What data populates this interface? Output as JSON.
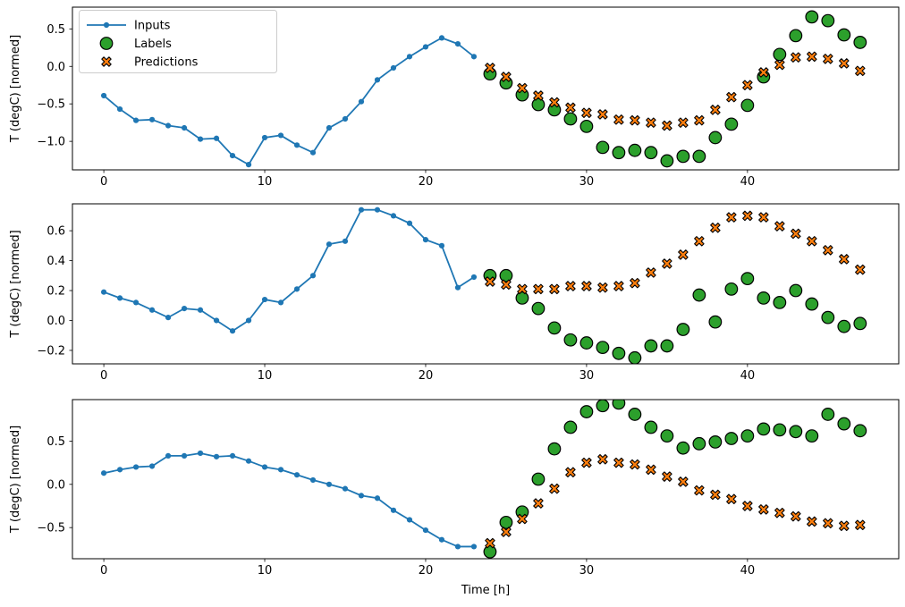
{
  "figure": {
    "x_label": "Time [h]",
    "y_label": "T (degC) [normed]",
    "colors": {
      "inputs": "#1f77b4",
      "labels": "#2ca02c",
      "predictions": "#ff7f0e",
      "marker_edge": "#000000",
      "axis": "#000000",
      "legend_border": "#cccccc",
      "background": "#ffffff"
    },
    "legend": {
      "position": "upper left",
      "items": [
        {
          "label": "Inputs",
          "marker": "line-dot",
          "series": "inputs"
        },
        {
          "label": "Labels",
          "marker": "circle",
          "series": "labels"
        },
        {
          "label": "Predictions",
          "marker": "X",
          "series": "predictions"
        }
      ]
    }
  },
  "chart_data": [
    {
      "type": "line",
      "panel": 1,
      "title": "",
      "xlabel": "",
      "ylabel": "T (degC) [normed]",
      "xlim": [
        -1.95,
        49.4
      ],
      "ylim": [
        -1.38,
        0.79
      ],
      "x_ticks": [
        0,
        10,
        20,
        30,
        40
      ],
      "y_ticks": [
        0.5,
        0.0,
        -0.5,
        -1.0
      ],
      "grid": false,
      "series": [
        {
          "name": "Inputs",
          "type": "line",
          "marker": "dot",
          "x": [
            0,
            1,
            2,
            3,
            4,
            5,
            6,
            7,
            8,
            9,
            10,
            11,
            12,
            13,
            14,
            15,
            16,
            17,
            18,
            19,
            20,
            21,
            22,
            23
          ],
          "y": [
            -0.39,
            -0.57,
            -0.72,
            -0.71,
            -0.79,
            -0.82,
            -0.97,
            -0.96,
            -1.19,
            -1.31,
            -0.95,
            -0.92,
            -1.05,
            -1.15,
            -0.82,
            -0.7,
            -0.47,
            -0.18,
            -0.02,
            0.13,
            0.26,
            0.38,
            0.3,
            0.13
          ]
        },
        {
          "name": "Labels",
          "type": "scatter",
          "marker": "circle",
          "x": [
            24,
            25,
            26,
            27,
            28,
            29,
            30,
            31,
            32,
            33,
            34,
            35,
            36,
            37,
            38,
            39,
            40,
            41,
            42,
            43,
            44,
            45,
            46,
            47
          ],
          "y": [
            -0.1,
            -0.22,
            -0.38,
            -0.51,
            -0.58,
            -0.7,
            -0.8,
            -1.08,
            -1.15,
            -1.12,
            -1.15,
            -1.26,
            -1.2,
            -1.2,
            -0.95,
            -0.77,
            -0.52,
            -0.14,
            0.16,
            0.41,
            0.66,
            0.61,
            0.42,
            0.32
          ]
        },
        {
          "name": "Predictions",
          "type": "scatter",
          "marker": "X",
          "x": [
            24,
            25,
            26,
            27,
            28,
            29,
            30,
            31,
            32,
            33,
            34,
            35,
            36,
            37,
            38,
            39,
            40,
            41,
            42,
            43,
            44,
            45,
            46,
            47
          ],
          "y": [
            -0.02,
            -0.14,
            -0.29,
            -0.39,
            -0.48,
            -0.55,
            -0.62,
            -0.64,
            -0.71,
            -0.72,
            -0.75,
            -0.79,
            -0.75,
            -0.72,
            -0.58,
            -0.41,
            -0.25,
            -0.08,
            0.02,
            0.12,
            0.13,
            0.1,
            0.04,
            -0.06
          ]
        }
      ]
    },
    {
      "type": "line",
      "panel": 2,
      "title": "",
      "xlabel": "",
      "ylabel": "T (degC) [normed]",
      "xlim": [
        -1.95,
        49.4
      ],
      "ylim": [
        -0.29,
        0.78
      ],
      "x_ticks": [
        0,
        10,
        20,
        30,
        40
      ],
      "y_ticks": [
        0.6,
        0.4,
        0.2,
        0.0,
        -0.2
      ],
      "grid": false,
      "series": [
        {
          "name": "Inputs",
          "type": "line",
          "marker": "dot",
          "x": [
            0,
            1,
            2,
            3,
            4,
            5,
            6,
            7,
            8,
            9,
            10,
            11,
            12,
            13,
            14,
            15,
            16,
            17,
            18,
            19,
            20,
            21,
            22,
            23
          ],
          "y": [
            0.19,
            0.15,
            0.12,
            0.07,
            0.02,
            0.08,
            0.07,
            0.0,
            -0.07,
            0.0,
            0.14,
            0.12,
            0.21,
            0.3,
            0.51,
            0.53,
            0.74,
            0.74,
            0.7,
            0.65,
            0.54,
            0.5,
            0.22,
            0.29
          ]
        },
        {
          "name": "Labels",
          "type": "scatter",
          "marker": "circle",
          "x": [
            24,
            25,
            26,
            27,
            28,
            29,
            30,
            31,
            32,
            33,
            34,
            35,
            36,
            37,
            38,
            39,
            40,
            41,
            42,
            43,
            44,
            45,
            46,
            47
          ],
          "y": [
            0.3,
            0.3,
            0.15,
            0.08,
            -0.05,
            -0.13,
            -0.15,
            -0.18,
            -0.22,
            -0.25,
            -0.17,
            -0.17,
            -0.06,
            0.17,
            -0.01,
            0.21,
            0.28,
            0.15,
            0.12,
            0.2,
            0.11,
            0.02,
            -0.04,
            -0.02
          ]
        },
        {
          "name": "Predictions",
          "type": "scatter",
          "marker": "X",
          "x": [
            24,
            25,
            26,
            27,
            28,
            29,
            30,
            31,
            32,
            33,
            34,
            35,
            36,
            37,
            38,
            39,
            40,
            41,
            42,
            43,
            44,
            45,
            46,
            47
          ],
          "y": [
            0.26,
            0.24,
            0.21,
            0.21,
            0.21,
            0.23,
            0.23,
            0.22,
            0.23,
            0.25,
            0.32,
            0.38,
            0.44,
            0.53,
            0.62,
            0.69,
            0.7,
            0.69,
            0.63,
            0.58,
            0.53,
            0.47,
            0.41,
            0.34
          ]
        }
      ]
    },
    {
      "type": "line",
      "panel": 3,
      "title": "",
      "xlabel": "Time [h]",
      "ylabel": "T (degC) [normed]",
      "xlim": [
        -1.95,
        49.4
      ],
      "ylim": [
        -0.86,
        0.98
      ],
      "x_ticks": [
        0,
        10,
        20,
        30,
        40
      ],
      "y_ticks": [
        0.5,
        0.0,
        -0.5
      ],
      "grid": false,
      "series": [
        {
          "name": "Inputs",
          "type": "line",
          "marker": "dot",
          "x": [
            0,
            1,
            2,
            3,
            4,
            5,
            6,
            7,
            8,
            9,
            10,
            11,
            12,
            13,
            14,
            15,
            16,
            17,
            18,
            19,
            20,
            21,
            22,
            23
          ],
          "y": [
            0.13,
            0.17,
            0.2,
            0.21,
            0.33,
            0.33,
            0.36,
            0.32,
            0.33,
            0.27,
            0.2,
            0.17,
            0.11,
            0.05,
            0.0,
            -0.05,
            -0.13,
            -0.16,
            -0.3,
            -0.41,
            -0.53,
            -0.64,
            -0.72,
            -0.72
          ]
        },
        {
          "name": "Labels",
          "type": "scatter",
          "marker": "circle",
          "x": [
            24,
            25,
            26,
            27,
            28,
            29,
            30,
            31,
            32,
            33,
            34,
            35,
            36,
            37,
            38,
            39,
            40,
            41,
            42,
            43,
            44,
            45,
            46,
            47
          ],
          "y": [
            -0.78,
            -0.44,
            -0.32,
            0.06,
            0.41,
            0.66,
            0.84,
            0.91,
            0.94,
            0.81,
            0.66,
            0.56,
            0.42,
            0.47,
            0.49,
            0.53,
            0.56,
            0.64,
            0.63,
            0.61,
            0.56,
            0.81,
            0.7,
            0.62
          ]
        },
        {
          "name": "Predictions",
          "type": "scatter",
          "marker": "X",
          "x": [
            24,
            25,
            26,
            27,
            28,
            29,
            30,
            31,
            32,
            33,
            34,
            35,
            36,
            37,
            38,
            39,
            40,
            41,
            42,
            43,
            44,
            45,
            46,
            47
          ],
          "y": [
            -0.68,
            -0.55,
            -0.4,
            -0.22,
            -0.05,
            0.14,
            0.25,
            0.29,
            0.25,
            0.23,
            0.17,
            0.09,
            0.03,
            -0.07,
            -0.12,
            -0.17,
            -0.25,
            -0.29,
            -0.33,
            -0.37,
            -0.43,
            -0.45,
            -0.48,
            -0.47
          ]
        }
      ]
    }
  ]
}
